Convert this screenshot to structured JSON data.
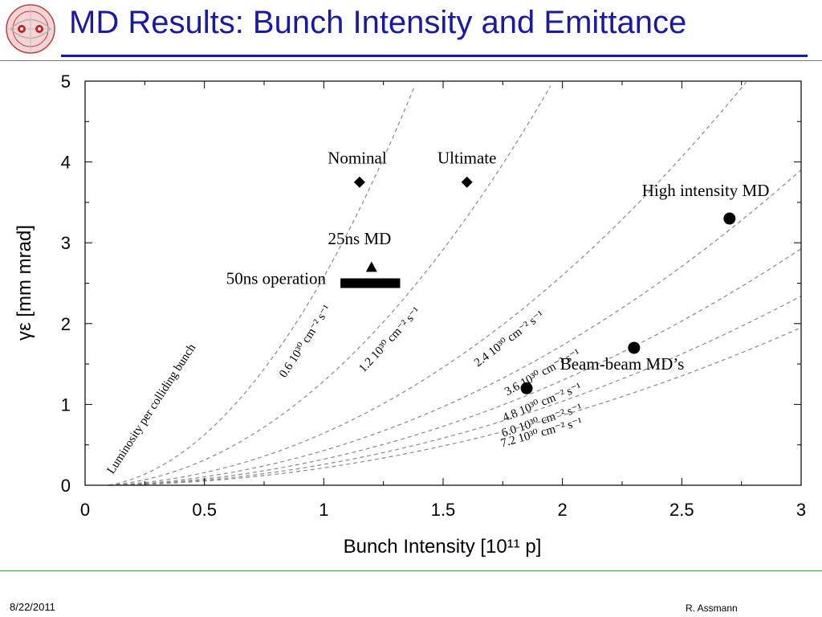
{
  "slide": {
    "title": "MD Results: Bunch Intensity and Emittance",
    "date": "8/22/2011",
    "author": "R. Assmann"
  },
  "chart_data": {
    "type": "scatter",
    "xlabel": "Bunch Intensity [10¹¹ p]",
    "ylabel": "γε [mm mrad]",
    "xlim": [
      0,
      3
    ],
    "ylim": [
      0,
      5
    ],
    "xticks": [
      "0",
      "0.5",
      "1",
      "1.5",
      "2",
      "2.5",
      "3"
    ],
    "yticks": [
      "0",
      "1",
      "2",
      "3",
      "4",
      "5"
    ],
    "xtick_values": [
      0,
      0.5,
      1,
      1.5,
      2,
      2.5,
      3
    ],
    "ytick_values": [
      0,
      1,
      2,
      3,
      4,
      5
    ],
    "grid": false,
    "points": [
      {
        "label": "Nominal",
        "x": 1.15,
        "y": 3.75,
        "marker": "diamond"
      },
      {
        "label": "Ultimate",
        "x": 1.6,
        "y": 3.75,
        "marker": "diamond"
      },
      {
        "label": "25ns MD",
        "x": 1.2,
        "y": 2.7,
        "marker": "triangle"
      },
      {
        "label": "High intensity MD",
        "x": 2.7,
        "y": 3.3,
        "marker": "circle"
      },
      {
        "label": "",
        "x": 2.3,
        "y": 1.7,
        "marker": "circle"
      },
      {
        "label": "",
        "x": 1.85,
        "y": 1.2,
        "marker": "circle"
      }
    ],
    "point_labels": [
      {
        "text": "Nominal",
        "x": 1.14,
        "y": 3.98
      },
      {
        "text": "Ultimate",
        "x": 1.6,
        "y": 3.98
      },
      {
        "text": "25ns MD",
        "x": 1.15,
        "y": 2.98
      },
      {
        "text": "High intensity MD",
        "x": 2.6,
        "y": 3.58
      },
      {
        "text": "Beam-beam MD’s",
        "x": 2.25,
        "y": 1.43
      },
      {
        "text": "50ns operation",
        "x": 0.8,
        "y": 2.49
      }
    ],
    "band": {
      "label": "50ns operation",
      "x0": 1.07,
      "x1": 1.32,
      "y": 2.5
    },
    "curves_title": "Luminosity per colliding bunch",
    "curves": [
      {
        "label": "0.6 10³⁰ cm⁻² s⁻¹",
        "lum": 0.6
      },
      {
        "label": "1.2 10³⁰ cm⁻² s⁻¹",
        "lum": 1.2
      },
      {
        "label": "2.4 10³⁰ cm⁻² s⁻¹",
        "lum": 2.4
      },
      {
        "label": "3.6 10³⁰ cm⁻² s⁻¹",
        "lum": 3.6
      },
      {
        "label": "4.8 10³⁰ cm⁻² s⁻¹",
        "lum": 4.8
      },
      {
        "label": "6.0 10³⁰ cm⁻² s⁻¹",
        "lum": 6.0
      },
      {
        "label": "7.2 10³⁰ cm⁻² s⁻¹",
        "lum": 7.2
      }
    ],
    "colors": {
      "curve": "#8a8a8a",
      "marker": "#000000"
    }
  }
}
